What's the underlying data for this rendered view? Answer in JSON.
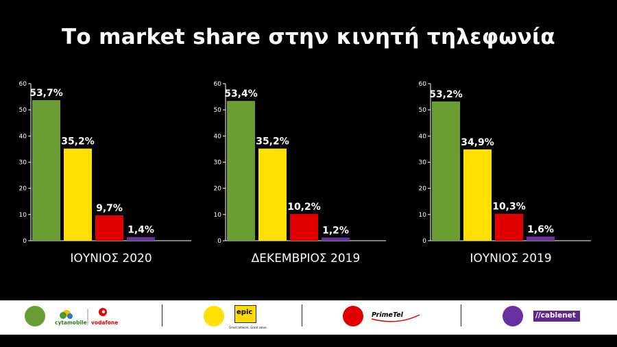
{
  "title": "Το market share στην κινητή τηλεφωνία",
  "chart_data": [
    {
      "type": "bar",
      "title": "ΙΟΥΝΙΟΣ 2020",
      "categories": [
        "cytamobile-vodafone",
        "epic",
        "PrimeTel",
        "cablenet"
      ],
      "values": [
        53.7,
        35.2,
        9.7,
        1.4
      ],
      "value_labels": [
        "53,7%",
        "35,2%",
        "9,7%",
        "1,4%"
      ],
      "ylim": [
        0,
        60
      ],
      "yticks": [
        0,
        10,
        20,
        30,
        40,
        50,
        60
      ],
      "colors": [
        "#6a9d32",
        "#ffe000",
        "#e00000",
        "#6a2fa0"
      ]
    },
    {
      "type": "bar",
      "title": "ΔΕΚΕΜΒΡΙΟΣ 2019",
      "categories": [
        "cytamobile-vodafone",
        "epic",
        "PrimeTel",
        "cablenet"
      ],
      "values": [
        53.4,
        35.2,
        10.2,
        1.2
      ],
      "value_labels": [
        "53,4%",
        "35,2%",
        "10,2%",
        "1,2%"
      ],
      "ylim": [
        0,
        60
      ],
      "yticks": [
        0,
        10,
        20,
        30,
        40,
        50,
        60
      ],
      "colors": [
        "#6a9d32",
        "#ffe000",
        "#e00000",
        "#6a2fa0"
      ]
    },
    {
      "type": "bar",
      "title": "ΙΟΥΝΙΟΣ 2019",
      "categories": [
        "cytamobile-vodafone",
        "epic",
        "PrimeTel",
        "cablenet"
      ],
      "values": [
        53.2,
        34.9,
        10.3,
        1.6
      ],
      "value_labels": [
        "53,2%",
        "34,9%",
        "10,3%",
        "1,6%"
      ],
      "ylim": [
        0,
        60
      ],
      "yticks": [
        0,
        10,
        20,
        30,
        40,
        50,
        60
      ],
      "colors": [
        "#6a9d32",
        "#ffe000",
        "#e00000",
        "#6a2fa0"
      ]
    }
  ],
  "legend": {
    "cyta_text": "cytamobile",
    "vodafone_text": "vodafone",
    "epic_text": "epic",
    "epic_tagline": "Great network. Great value.",
    "primetel_text": "PrimeTel",
    "cablenet_text": "//cablenet",
    "colors": {
      "green": "#6a9d32",
      "yellow": "#ffe000",
      "red": "#e00000",
      "purple": "#6a2fa0",
      "vodafone_red": "#e60000",
      "cyta_green": "#4a9a2e",
      "epic_bg": "#ffdd00",
      "cablenet_bg": "#5c2a8c"
    }
  }
}
